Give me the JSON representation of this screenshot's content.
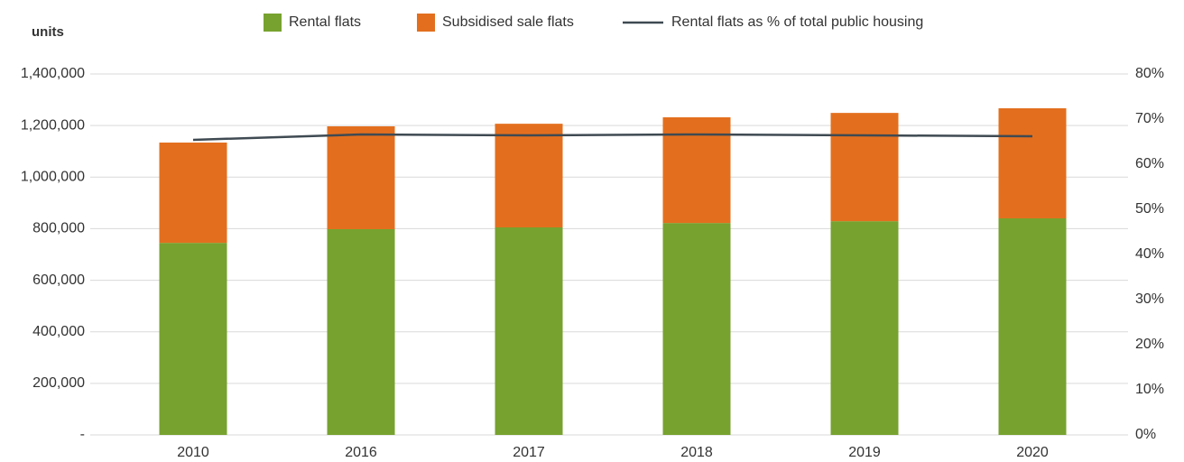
{
  "chart_data": {
    "type": "bar",
    "y_label": "units",
    "categories": [
      "2010",
      "2016",
      "2017",
      "2018",
      "2019",
      "2020"
    ],
    "series": [
      {
        "name": "Rental flats",
        "type": "bar",
        "color": "#77a22f",
        "values": [
          745000,
          798000,
          805000,
          822000,
          829000,
          840000
        ]
      },
      {
        "name": "Subsidised sale flats",
        "type": "bar",
        "color": "#e36f1e",
        "values": [
          389000,
          399000,
          402000,
          410000,
          420000,
          427000
        ]
      },
      {
        "name": "Rental flats as % of total public housing",
        "type": "line",
        "axis": "y2",
        "color": "#3f4a52",
        "values": [
          65.4,
          66.6,
          66.4,
          66.6,
          66.4,
          66.2
        ]
      }
    ],
    "ylim": [
      0,
      1400000
    ],
    "yticks": [
      {
        "value": 0,
        "label": "-"
      },
      {
        "value": 200000,
        "label": "200,000"
      },
      {
        "value": 400000,
        "label": "400,000"
      },
      {
        "value": 600000,
        "label": "600,000"
      },
      {
        "value": 800000,
        "label": "800,000"
      },
      {
        "value": 1000000,
        "label": "1,000,000"
      },
      {
        "value": 1200000,
        "label": "1,200,000"
      },
      {
        "value": 1400000,
        "label": "1,400,000"
      }
    ],
    "y2lim": [
      0,
      80
    ],
    "y2ticks": [
      {
        "value": 0,
        "label": "0%"
      },
      {
        "value": 10,
        "label": "10%"
      },
      {
        "value": 20,
        "label": "20%"
      },
      {
        "value": 30,
        "label": "30%"
      },
      {
        "value": 40,
        "label": "40%"
      },
      {
        "value": 50,
        "label": "50%"
      },
      {
        "value": 60,
        "label": "60%"
      },
      {
        "value": 70,
        "label": "70%"
      },
      {
        "value": 80,
        "label": "80%"
      }
    ],
    "grid": true,
    "legend": "top"
  }
}
